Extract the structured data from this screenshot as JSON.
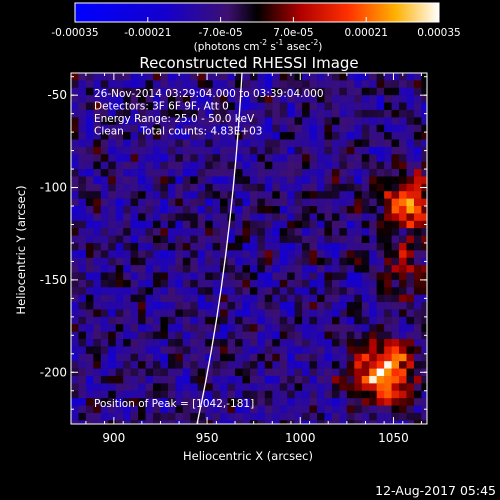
{
  "chart_data": {
    "type": "heatmap",
    "title": "Reconstructed RHESSI Image",
    "xlabel": "Heliocentric X (arcsec)",
    "ylabel": "Heliocentric Y (arcsec)",
    "xlim": [
      877,
      1068
    ],
    "ylim": [
      -228,
      -38
    ],
    "x_ticks": [
      "900",
      "950",
      "1000",
      "1050"
    ],
    "x_tick_values": [
      900,
      950,
      1000,
      1050
    ],
    "y_ticks": [
      "-50",
      "-100",
      "-150",
      "-200"
    ],
    "y_tick_values": [
      -50,
      -100,
      -150,
      -200
    ],
    "colorbar": {
      "ticks": [
        "-0.00035",
        "-0.00021",
        "-7.0e-05",
        "7.0e-05",
        "0.00021",
        "0.00035"
      ],
      "tick_values": [
        -0.00035,
        -0.00021,
        -7e-05,
        7e-05,
        0.00021,
        0.00035
      ],
      "units_text": "(photons cm",
      "units_exp1": "-2",
      "units_mid": " s",
      "units_exp2": "-1",
      "units_tail": " asec",
      "units_exp3": "-2",
      "units_close": ")",
      "range": [
        -0.00035,
        0.00035
      ]
    },
    "info_lines": [
      "26-Nov-2014 03:29:04.000 to 03:39:04.000",
      "Detectors: 3F 6F 9F, Att 0",
      "Energy Range: 25.0 - 50.0 keV",
      "Clean     Total counts: 4.83E+03"
    ],
    "peak_text": "Position of Peak = [1042,-181]",
    "peak_position": [
      1042,
      -181
    ],
    "sources": [
      {
        "x": 1045,
        "y": -200,
        "strength": 0.00035
      },
      {
        "x": 1058,
        "y": -108,
        "strength": 0.00025
      },
      {
        "x": 1058,
        "y": -145,
        "strength": 0.00012
      }
    ]
  },
  "footer": {
    "timestamp": "12-Aug-2017 05:45"
  }
}
